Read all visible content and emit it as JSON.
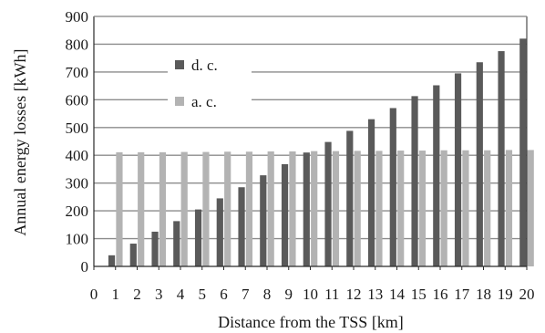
{
  "chart_data": {
    "type": "bar",
    "xlabel": "Distance from the TSS [km]",
    "ylabel": "Annual energy losses [kWh]",
    "ylim": [
      0,
      900
    ],
    "yticks": [
      0,
      100,
      200,
      300,
      400,
      500,
      600,
      700,
      800,
      900
    ],
    "categories": [
      "0",
      "1",
      "2",
      "3",
      "4",
      "5",
      "6",
      "7",
      "8",
      "9",
      "10",
      "11",
      "12",
      "13",
      "14",
      "15",
      "16",
      "17",
      "18",
      "19",
      "20"
    ],
    "series": [
      {
        "name": "d. c.",
        "color": "#5a5a5a",
        "values": [
          0,
          40,
          82,
          125,
          163,
          205,
          245,
          285,
          328,
          368,
          410,
          448,
          488,
          530,
          570,
          613,
          652,
          695,
          735,
          775,
          820
        ]
      },
      {
        "name": "a. c.",
        "color": "#b3b3b3",
        "values": [
          null,
          411,
          411,
          411,
          412,
          412,
          413,
          413,
          414,
          414,
          415,
          415,
          416,
          416,
          417,
          417,
          418,
          418,
          418,
          419,
          419
        ]
      }
    ],
    "grid": "horizontal",
    "legend_position": "top-left"
  }
}
